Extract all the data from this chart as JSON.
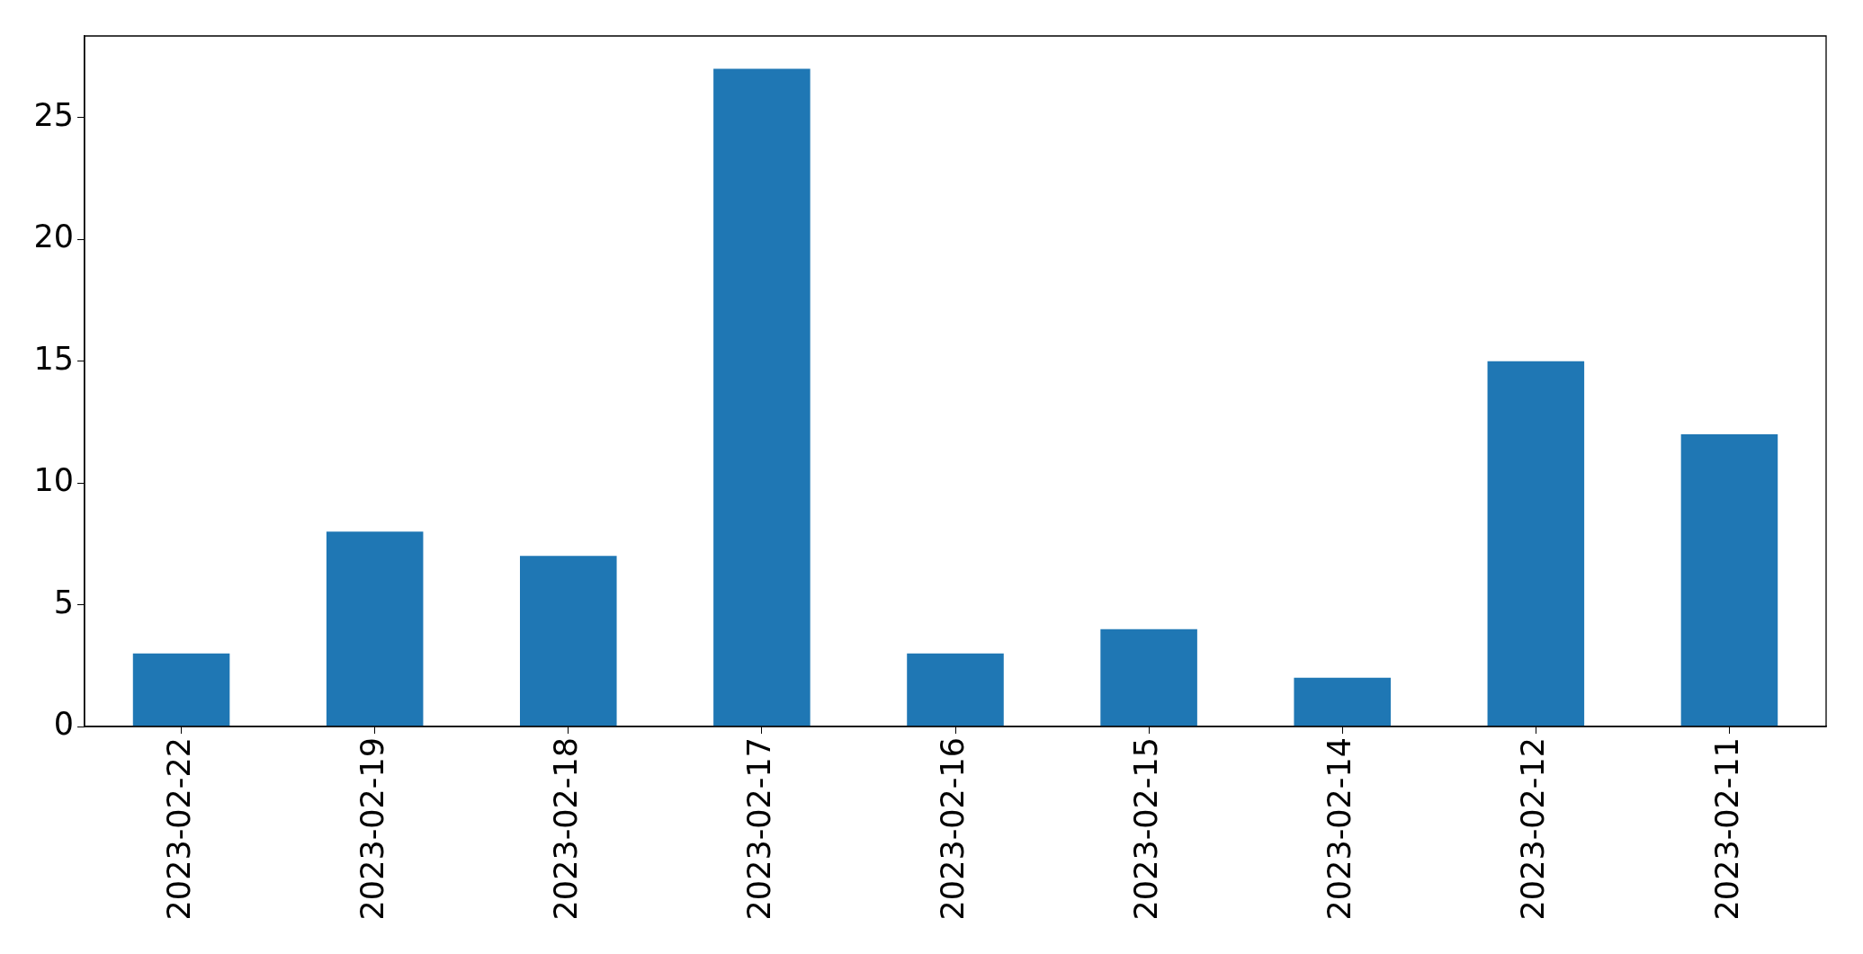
{
  "chart_data": {
    "type": "bar",
    "categories": [
      "2023-02-22",
      "2023-02-19",
      "2023-02-18",
      "2023-02-17",
      "2023-02-16",
      "2023-02-15",
      "2023-02-14",
      "2023-02-12",
      "2023-02-11"
    ],
    "values": [
      3,
      8,
      7,
      27,
      3,
      4,
      2,
      15,
      12
    ],
    "color": "#1f77b4",
    "ylim": [
      0,
      28.35
    ],
    "yticks": [
      0,
      5,
      10,
      15,
      20,
      25
    ]
  }
}
